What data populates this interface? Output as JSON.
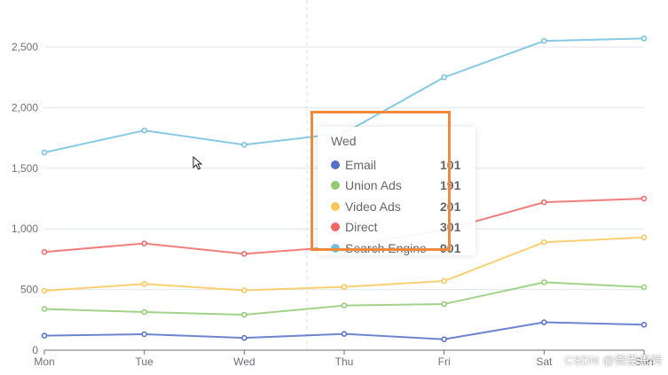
{
  "chart_data": {
    "type": "line",
    "categories": [
      "Mon",
      "Tue",
      "Wed",
      "Thu",
      "Fri",
      "Sat",
      "Sun"
    ],
    "ylim": [
      0,
      2500
    ],
    "y_ticks": [
      {
        "value": 0,
        "label": "0"
      },
      {
        "value": 500,
        "label": "500"
      },
      {
        "value": 1000,
        "label": "1,000"
      },
      {
        "value": 1500,
        "label": "1,500"
      },
      {
        "value": 2000,
        "label": "2,000"
      },
      {
        "value": 2500,
        "label": "2,500"
      }
    ],
    "x_tick_labels": [
      "Mon",
      "Tue",
      "Wed",
      "Thu",
      "Fri",
      "Sat",
      "Sun"
    ],
    "grid": "horizontal",
    "series": [
      {
        "name": "Email",
        "color": "#5470c6",
        "values": [
          120,
          132,
          101,
          134,
          90,
          230,
          210
        ]
      },
      {
        "name": "Union Ads",
        "color": "#91cc75",
        "values": [
          340,
          314,
          292,
          368,
          380,
          560,
          520
        ]
      },
      {
        "name": "Video Ads",
        "color": "#fac858",
        "values": [
          490,
          546,
          493,
          522,
          570,
          890,
          930
        ]
      },
      {
        "name": "Direct",
        "color": "#ee6666",
        "values": [
          810,
          880,
          794,
          856,
          990,
          1220,
          1250
        ]
      },
      {
        "name": "Search Engine",
        "color": "#73c0de",
        "values": [
          1630,
          1812,
          1694,
          1790,
          2250,
          2550,
          2570
        ]
      }
    ]
  },
  "tooltip": {
    "title": "Wed",
    "rows": [
      {
        "name": "Email",
        "value": "101",
        "color": "#5470c6"
      },
      {
        "name": "Union Ads",
        "value": "191",
        "color": "#91cc75"
      },
      {
        "name": "Video Ads",
        "value": "201",
        "color": "#fac858"
      },
      {
        "name": "Direct",
        "value": "301",
        "color": "#ee6666"
      },
      {
        "name": "Search Engine",
        "value": "901",
        "color": "#73c0de"
      }
    ]
  },
  "annotation": {
    "highlight_color": "#ef8a3c"
  },
  "watermark": {
    "text": "CSDN @微臣恩转"
  }
}
